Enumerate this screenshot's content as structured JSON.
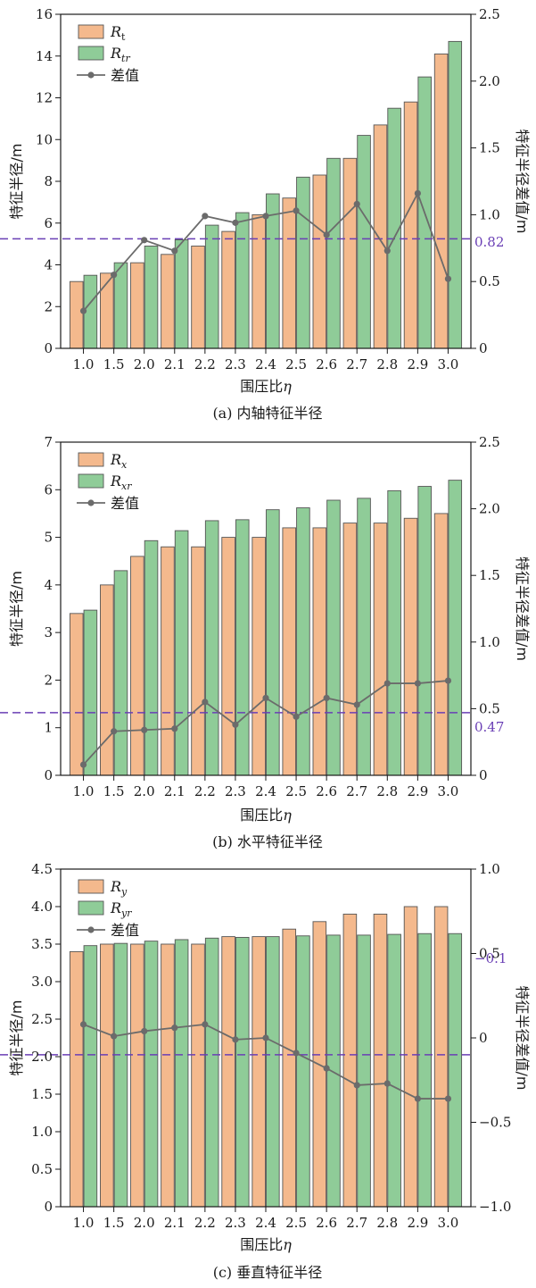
{
  "chart_data": [
    {
      "type": "bar",
      "caption": "(a) 内轴特征半径",
      "xlabel": "围压比η",
      "ylabel": "特征半径/m",
      "y2label": "特征半径差值/m",
      "categories": [
        "1.0",
        "1.5",
        "2.0",
        "2.1",
        "2.2",
        "2.3",
        "2.4",
        "2.5",
        "2.6",
        "2.7",
        "2.8",
        "2.9",
        "3.0"
      ],
      "ylim": [
        0,
        16
      ],
      "yticks": [
        0,
        2,
        4,
        6,
        8,
        10,
        12,
        14,
        16
      ],
      "y2lim": [
        0,
        2.5
      ],
      "y2ticks": [
        0,
        0.5,
        1.0,
        1.5,
        2.0,
        2.5
      ],
      "y2ticklabels": [
        "0",
        "0.5",
        "1.0",
        "1.5",
        "2.0",
        "2.5"
      ],
      "legend": {
        "placement": "top-left",
        "entries": [
          {
            "base": "R",
            "sub": "t"
          },
          {
            "base": "R",
            "sub": "tr"
          },
          {
            "text": "差值"
          }
        ]
      },
      "series": [
        {
          "name": "Rt",
          "kind": "bar",
          "color": "#f4b98d",
          "values": [
            3.2,
            3.6,
            4.1,
            4.5,
            4.9,
            5.6,
            6.4,
            7.2,
            8.3,
            9.1,
            10.7,
            11.8,
            14.1
          ]
        },
        {
          "name": "Rtr",
          "kind": "bar",
          "color": "#8fcc98",
          "values": [
            3.5,
            4.1,
            4.9,
            5.2,
            5.9,
            6.5,
            7.4,
            8.2,
            9.1,
            10.2,
            11.5,
            13.0,
            14.7
          ]
        },
        {
          "name": "差值",
          "kind": "line",
          "axis": "right",
          "color": "#6b6b6b",
          "values": [
            0.28,
            0.55,
            0.81,
            0.73,
            0.99,
            0.94,
            0.99,
            1.03,
            0.85,
            1.08,
            0.73,
            1.16,
            0.52
          ]
        }
      ],
      "reference_line": {
        "value": 0.82,
        "label": "0.82",
        "color": "#6a3fb5"
      }
    },
    {
      "type": "bar",
      "caption": "(b) 水平特征半径",
      "xlabel": "围压比η",
      "ylabel": "特征半径/m",
      "y2label": "特征半径差值/m",
      "categories": [
        "1.0",
        "1.5",
        "2.0",
        "2.1",
        "2.2",
        "2.3",
        "2.4",
        "2.5",
        "2.6",
        "2.7",
        "2.8",
        "2.9",
        "3.0"
      ],
      "ylim": [
        0,
        7
      ],
      "yticks": [
        0,
        1,
        2,
        3,
        4,
        5,
        6,
        7
      ],
      "y2lim": [
        0,
        2.5
      ],
      "y2ticks": [
        0,
        0.5,
        1.0,
        1.5,
        2.0,
        2.5
      ],
      "y2ticklabels": [
        "0",
        "0.5",
        "1.0",
        "1.5",
        "2.0",
        "2.5"
      ],
      "legend": {
        "placement": "top-left",
        "entries": [
          {
            "base": "R",
            "sub": "x"
          },
          {
            "base": "R",
            "sub": "xr"
          },
          {
            "text": "差值"
          }
        ]
      },
      "series": [
        {
          "name": "Rx",
          "kind": "bar",
          "color": "#f4b98d",
          "values": [
            3.4,
            4.0,
            4.6,
            4.8,
            4.8,
            5.0,
            5.0,
            5.2,
            5.2,
            5.3,
            5.3,
            5.4,
            5.5
          ]
        },
        {
          "name": "Rxr",
          "kind": "bar",
          "color": "#8fcc98",
          "values": [
            3.47,
            4.3,
            4.93,
            5.14,
            5.35,
            5.37,
            5.58,
            5.62,
            5.78,
            5.82,
            5.98,
            6.07,
            6.2
          ]
        },
        {
          "name": "差值",
          "kind": "line",
          "axis": "right",
          "color": "#6b6b6b",
          "values": [
            0.08,
            0.33,
            0.34,
            0.35,
            0.55,
            0.38,
            0.58,
            0.44,
            0.58,
            0.53,
            0.69,
            0.69,
            0.71
          ]
        }
      ],
      "reference_line": {
        "value": 0.47,
        "label": "0.47",
        "color": "#6a3fb5"
      }
    },
    {
      "type": "bar",
      "caption": "(c) 垂直特征半径",
      "xlabel": "围压比η",
      "ylabel": "特征半径/m",
      "y2label": "特征半径差值/m",
      "categories": [
        "1.0",
        "1.5",
        "2.0",
        "2.1",
        "2.2",
        "2.3",
        "2.4",
        "2.5",
        "2.6",
        "2.7",
        "2.8",
        "2.9",
        "3.0"
      ],
      "ylim": [
        0,
        4.5
      ],
      "yticks": [
        0,
        0.5,
        1.0,
        1.5,
        2.0,
        2.5,
        3.0,
        3.5,
        4.0,
        4.5
      ],
      "yticklabels": [
        "0",
        "0.5",
        "1.0",
        "1.5",
        "2.0",
        "2.5",
        "3.0",
        "3.5",
        "4.0",
        "4.5"
      ],
      "y2lim": [
        -1.0,
        1.0
      ],
      "y2ticks": [
        -1.0,
        -0.5,
        0,
        0.5,
        1.0
      ],
      "y2ticklabels": [
        "−1.0",
        "−0.5",
        "0",
        "0.5",
        "1.0"
      ],
      "legend": {
        "placement": "top-left",
        "entries": [
          {
            "base": "R",
            "sub": "y"
          },
          {
            "base": "R",
            "sub": "yr"
          },
          {
            "text": "差值"
          }
        ]
      },
      "series": [
        {
          "name": "Ry",
          "kind": "bar",
          "color": "#f4b98d",
          "values": [
            3.4,
            3.5,
            3.5,
            3.5,
            3.5,
            3.6,
            3.6,
            3.7,
            3.8,
            3.9,
            3.9,
            4.0,
            4.0
          ]
        },
        {
          "name": "Ryr",
          "kind": "bar",
          "color": "#8fcc98",
          "values": [
            3.48,
            3.51,
            3.54,
            3.56,
            3.58,
            3.59,
            3.6,
            3.61,
            3.62,
            3.62,
            3.63,
            3.64,
            3.64
          ]
        },
        {
          "name": "差值",
          "kind": "line",
          "axis": "right",
          "color": "#6b6b6b",
          "values": [
            0.08,
            0.01,
            0.04,
            0.06,
            0.08,
            -0.01,
            0.0,
            -0.09,
            -0.18,
            -0.28,
            -0.27,
            -0.36,
            -0.36
          ]
        }
      ],
      "reference_line": {
        "value": -0.1,
        "label": "−0.1",
        "color": "#6a3fb5"
      }
    }
  ]
}
